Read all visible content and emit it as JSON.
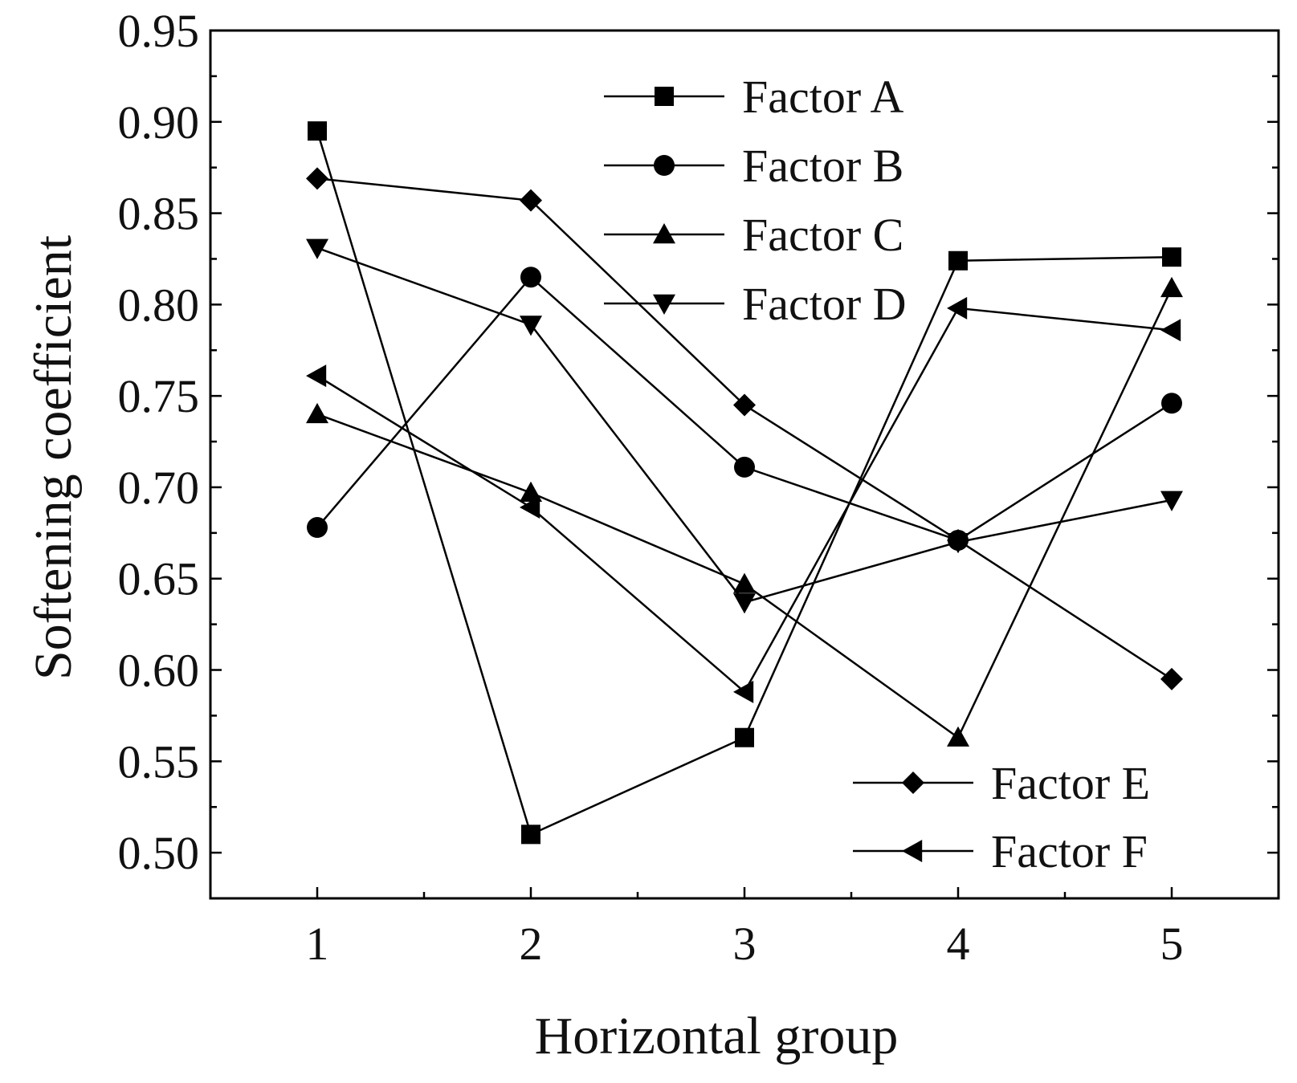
{
  "chart_data": {
    "type": "line",
    "title": "",
    "xlabel": "Horizontal group",
    "ylabel": "Softening coefficient",
    "x": [
      1,
      2,
      3,
      4,
      5
    ],
    "x_tick_labels": [
      "1",
      "2",
      "3",
      "4",
      "5"
    ],
    "xlim": [
      0.5,
      5.5
    ],
    "ylim": [
      0.475,
      0.95
    ],
    "y_ticks": [
      0.5,
      0.55,
      0.6,
      0.65,
      0.7,
      0.75,
      0.8,
      0.85,
      0.9,
      0.95
    ],
    "y_tick_labels": [
      "0.50",
      "0.55",
      "0.60",
      "0.65",
      "0.70",
      "0.75",
      "0.80",
      "0.85",
      "0.90",
      "0.95"
    ],
    "grid": false,
    "legend": [
      "top-center",
      "bottom-right"
    ],
    "series": [
      {
        "name": "Factor A",
        "marker": "square",
        "values": [
          0.895,
          0.51,
          0.563,
          0.824,
          0.826
        ]
      },
      {
        "name": "Factor B",
        "marker": "circle",
        "values": [
          0.678,
          0.815,
          0.711,
          0.671,
          0.746
        ]
      },
      {
        "name": "Factor C",
        "marker": "triangle-up",
        "values": [
          0.74,
          0.697,
          0.647,
          0.563,
          0.809
        ]
      },
      {
        "name": "Factor D",
        "marker": "triangle-down",
        "values": [
          0.831,
          0.789,
          0.637,
          0.67,
          0.693
        ]
      },
      {
        "name": "Factor E",
        "marker": "diamond",
        "values": [
          0.869,
          0.857,
          0.745,
          0.671,
          0.595
        ]
      },
      {
        "name": "Factor F",
        "marker": "triangle-left",
        "values": [
          0.761,
          0.689,
          0.588,
          0.798,
          0.786
        ]
      }
    ]
  }
}
